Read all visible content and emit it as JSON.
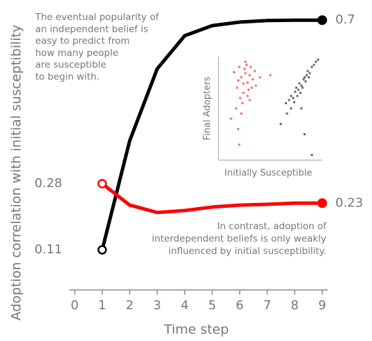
{
  "chart_data": [
    {
      "type": "line",
      "xlabel": "Time step",
      "ylabel": "Adoption correlation with initial susceptibility",
      "x": [
        1,
        2,
        3,
        4,
        5,
        6,
        7,
        8,
        9
      ],
      "xlim": [
        0,
        9
      ],
      "xticks": [
        0,
        1,
        2,
        3,
        4,
        5,
        6,
        7,
        8,
        9
      ],
      "ylim": [
        0,
        0.75
      ],
      "series": [
        {
          "color": "#000000",
          "values": [
            0.11,
            0.39,
            0.575,
            0.66,
            0.686,
            0.695,
            0.699,
            0.7,
            0.7
          ]
        },
        {
          "color": "#ff0000",
          "values": [
            0.28,
            0.225,
            0.206,
            0.211,
            0.22,
            0.225,
            0.227,
            0.23,
            0.23
          ]
        }
      ],
      "annotations": [
        [
          "The eventual popularity of",
          "an independent belief is",
          "easy to predict from",
          "how many people",
          "are susceptible",
          "to begin with."
        ],
        [
          "In contrast, adoption of",
          "interdependent beliefs is only weakly",
          "influenced by initial susceptibility."
        ]
      ]
    },
    {
      "type": "scatter",
      "xlabel": "Initially Susceptible",
      "ylabel": "Final Adopters",
      "xlim": [
        0,
        1
      ],
      "ylim": [
        0,
        1
      ],
      "series": [
        {
          "color": "#ff0000",
          "x": [
            0.15,
            0.2,
            0.22,
            0.25,
            0.28,
            0.3,
            0.18,
            0.24,
            0.27,
            0.33,
            0.36,
            0.21,
            0.26,
            0.29,
            0.31,
            0.19,
            0.23,
            0.35,
            0.4,
            0.17,
            0.28,
            0.24,
            0.3,
            0.22,
            0.26,
            0.12,
            0.2,
            0.32,
            0.5,
            0.19
          ],
          "y": [
            0.85,
            0.9,
            0.8,
            0.88,
            0.75,
            0.82,
            0.7,
            0.65,
            0.92,
            0.78,
            0.72,
            0.6,
            0.84,
            0.68,
            0.9,
            0.77,
            0.55,
            0.86,
            0.8,
            0.5,
            0.62,
            0.74,
            0.58,
            0.45,
            0.95,
            0.4,
            0.15,
            0.7,
            0.82,
            0.3
          ]
        },
        {
          "color": "#000000",
          "x": [
            0.65,
            0.68,
            0.7,
            0.72,
            0.74,
            0.75,
            0.77,
            0.78,
            0.8,
            0.82,
            0.83,
            0.85,
            0.86,
            0.88,
            0.9,
            0.92,
            0.94,
            0.96,
            0.7,
            0.73,
            0.76,
            0.79,
            0.81,
            0.84,
            0.87,
            0.6,
            0.66,
            0.8,
            0.83,
            0.9
          ],
          "y": [
            0.55,
            0.58,
            0.62,
            0.6,
            0.66,
            0.7,
            0.68,
            0.74,
            0.72,
            0.78,
            0.8,
            0.82,
            0.86,
            0.84,
            0.9,
            0.92,
            0.95,
            0.97,
            0.5,
            0.56,
            0.62,
            0.65,
            0.7,
            0.76,
            0.8,
            0.35,
            0.45,
            0.5,
            0.25,
            0.05
          ]
        }
      ]
    }
  ]
}
